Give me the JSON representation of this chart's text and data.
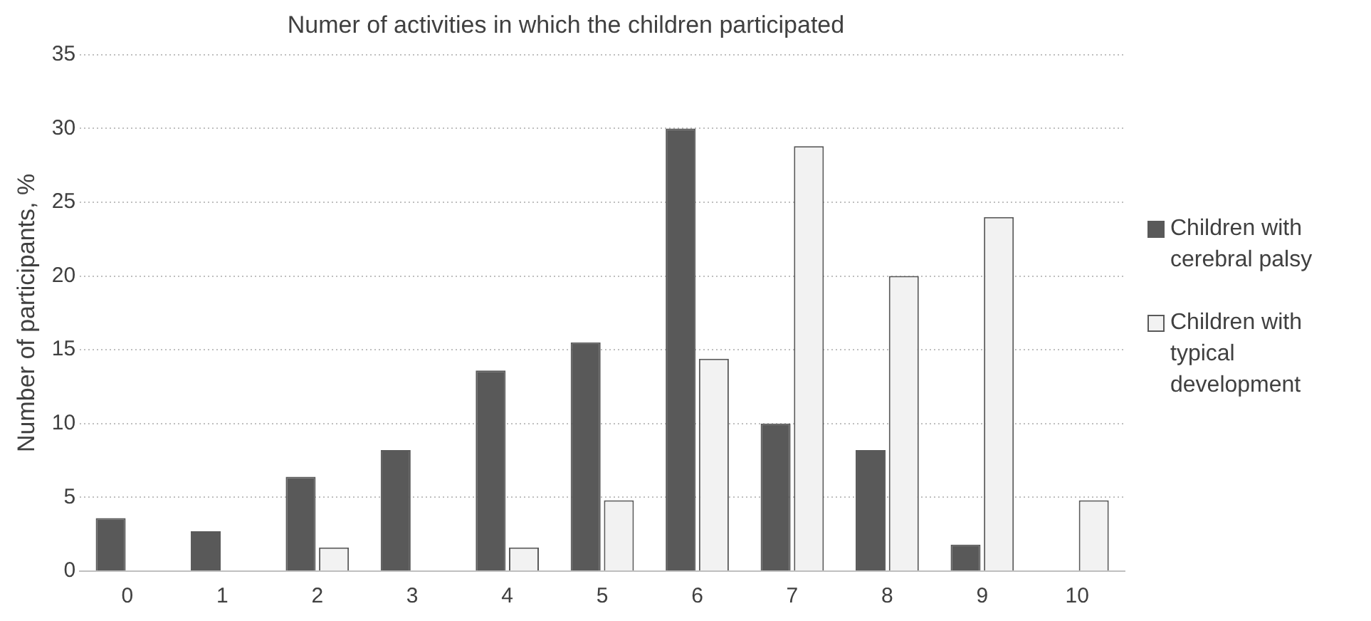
{
  "chart_data": {
    "type": "bar",
    "title": "Numer of activities in which the children participated",
    "ylabel": "Number of participants, %",
    "categories": [
      "0",
      "1",
      "2",
      "3",
      "4",
      "5",
      "6",
      "7",
      "8",
      "9",
      "10"
    ],
    "series": [
      {
        "name": "Children with cerebral palsy",
        "color": "#595959",
        "values": [
          3.6,
          2.7,
          6.4,
          8.2,
          13.6,
          15.5,
          30,
          10,
          8.2,
          1.8,
          0
        ]
      },
      {
        "name": "Children with typical development",
        "color": "#f2f2f2",
        "values": [
          0,
          0,
          1.6,
          0,
          1.6,
          4.8,
          14.4,
          28.8,
          20,
          24,
          4.8
        ]
      }
    ],
    "ylim": [
      0,
      35
    ],
    "yticks": [
      0,
      5,
      10,
      15,
      20,
      25,
      30,
      35
    ],
    "grid": "y",
    "legend": "right"
  }
}
